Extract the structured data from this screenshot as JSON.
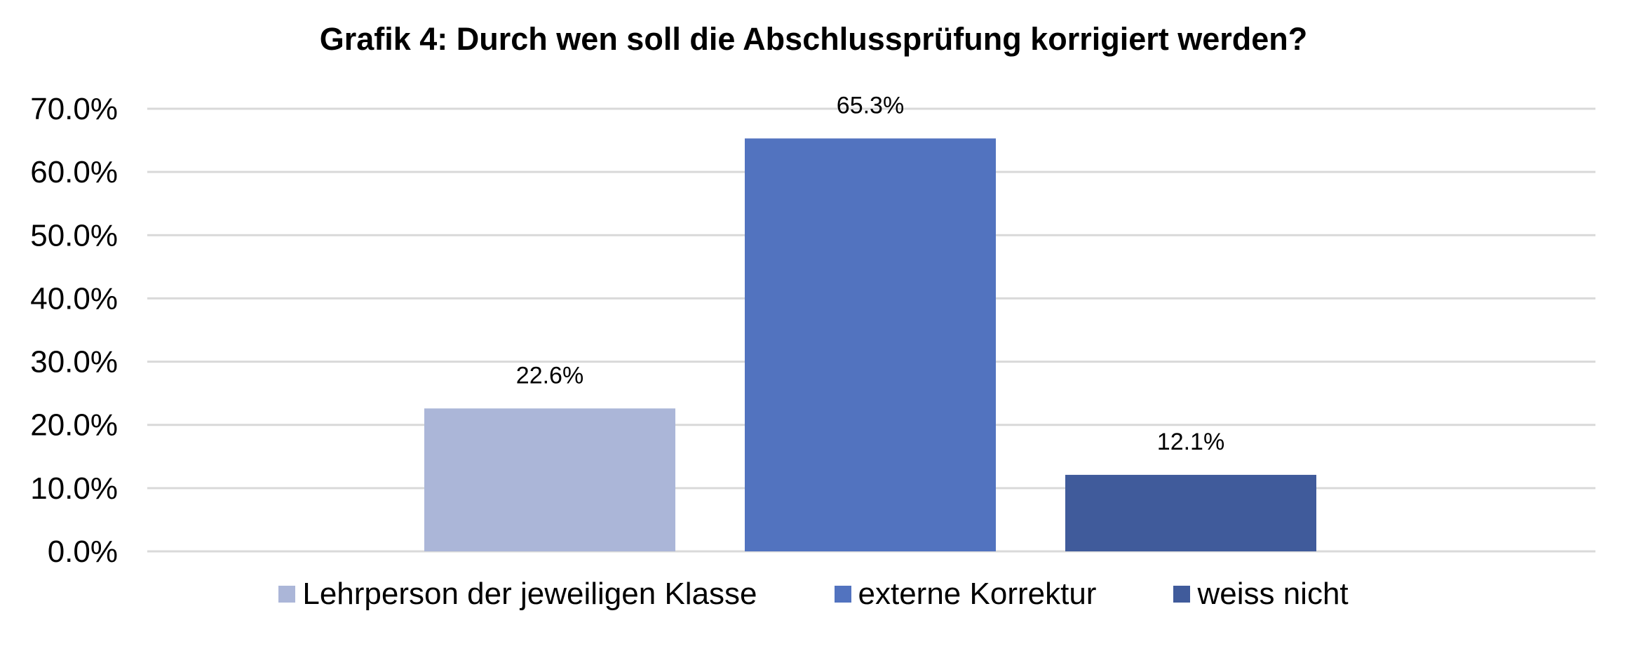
{
  "chart_data": {
    "type": "bar",
    "title": "Grafik 4:  Durch wen soll die Abschlussprüfung korrigiert werden?",
    "xlabel": "",
    "ylabel": "",
    "ylim": [
      0,
      70
    ],
    "yticks": [
      "0.0%",
      "10.0%",
      "20.0%",
      "30.0%",
      "40.0%",
      "50.0%",
      "60.0%",
      "70.0%"
    ],
    "grid": true,
    "legend_position": "bottom",
    "series": [
      {
        "name": "Lehrperson der jeweiligen Klasse",
        "value": 22.6,
        "label": "22.6%",
        "color": "#abb6d8"
      },
      {
        "name": "externe Korrektur",
        "value": 65.3,
        "label": "65.3%",
        "color": "#5273bf"
      },
      {
        "name": "weiss nicht",
        "value": 12.1,
        "label": "12.1%",
        "color": "#405b9b"
      }
    ]
  }
}
